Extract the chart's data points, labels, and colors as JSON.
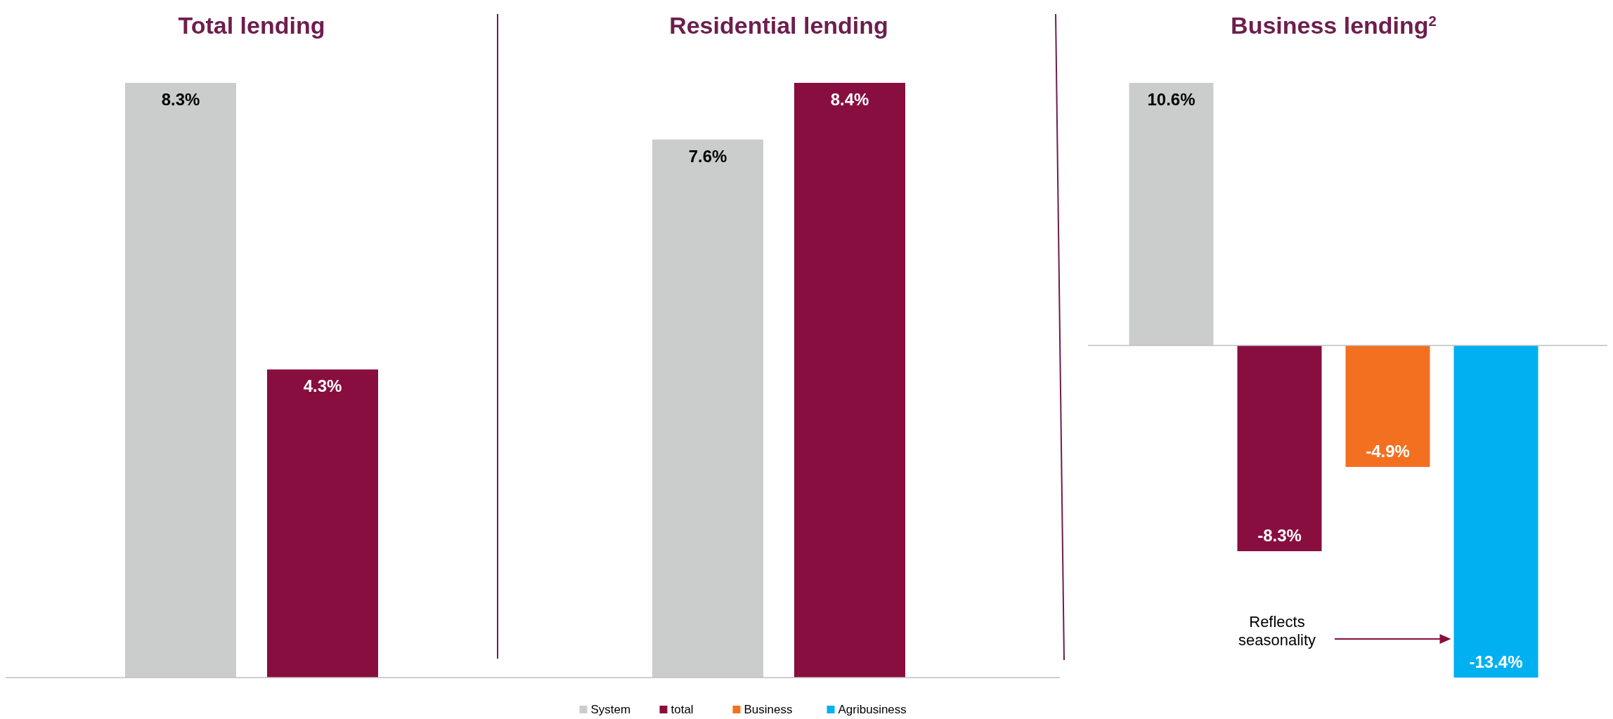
{
  "chart_data": [
    {
      "type": "bar",
      "title": "Total lending",
      "categories": [
        null
      ],
      "legend": false,
      "series": [
        {
          "color": "#cbcdcc",
          "values": [
            8.3
          ],
          "value_labels": [
            "8.3%"
          ]
        },
        {
          "color": "#880e3f",
          "values": [
            4.3
          ],
          "value_labels": [
            "4.3%"
          ]
        }
      ]
    },
    {
      "type": "bar",
      "title": "Residential lending",
      "categories": [
        null
      ],
      "legend": false,
      "series": [
        {
          "color": "#cbcdcc",
          "values": [
            7.6
          ],
          "value_labels": [
            "7.6%"
          ]
        },
        {
          "color": "#880e3f",
          "values": [
            8.4
          ],
          "value_labels": [
            "8.4%"
          ]
        }
      ]
    },
    {
      "type": "bar",
      "title": "Business lending$^{2}$",
      "categories": [
        null
      ],
      "legend": "bottom",
      "annotations": [
        "Reflects seasonality"
      ],
      "series": [
        {
          "name": "System",
          "color": "#cbcdcc",
          "values": [
            10.6
          ],
          "value_labels": [
            "10.6%"
          ]
        },
        {
          "name": "total",
          "color": "#880e3f",
          "values": [
            -8.3
          ],
          "value_labels": [
            "-8.3%"
          ]
        },
        {
          "name": "Business",
          "color": "#f37021",
          "values": [
            -4.9
          ],
          "value_labels": [
            "-4.9%"
          ]
        },
        {
          "name": "Agribusiness",
          "color": "#00b0f0",
          "values": [
            -13.4
          ],
          "value_labels": [
            "-13.4%"
          ]
        }
      ]
    }
  ]
}
